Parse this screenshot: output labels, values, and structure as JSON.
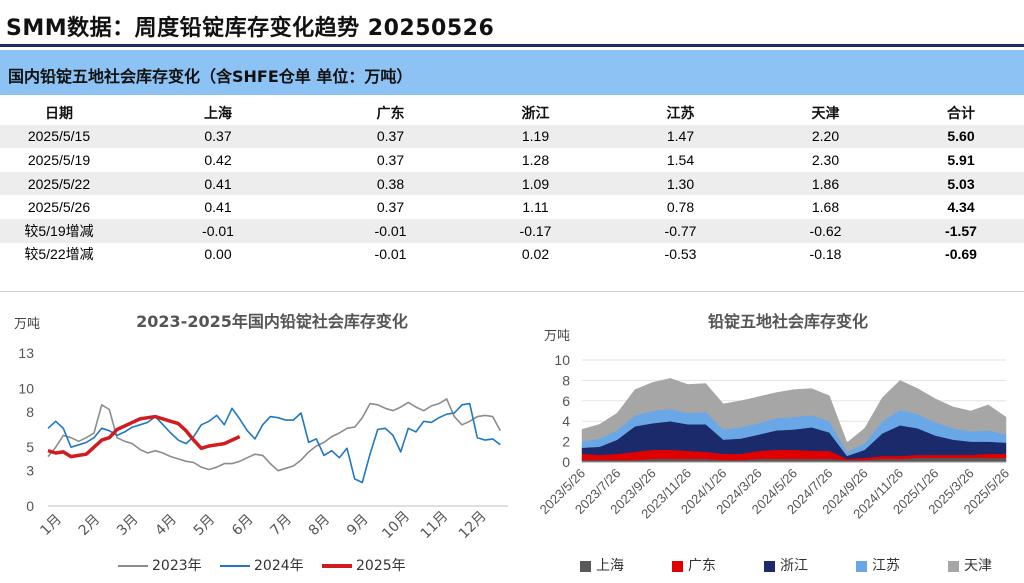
{
  "page_title": "SMM数据：周度铅锭库存变化趋势 20250526",
  "table": {
    "title": "国内铅锭五地社会库存变化（含SHFE仓单 单位：万吨）",
    "headers": [
      "日期",
      "上海",
      "广东",
      "浙江",
      "江苏",
      "天津",
      "合计"
    ],
    "rows": [
      [
        "2025/5/15",
        "0.37",
        "0.37",
        "1.19",
        "1.47",
        "2.20",
        "5.60"
      ],
      [
        "2025/5/19",
        "0.42",
        "0.37",
        "1.28",
        "1.54",
        "2.30",
        "5.91"
      ],
      [
        "2025/5/22",
        "0.41",
        "0.38",
        "1.09",
        "1.30",
        "1.86",
        "5.03"
      ],
      [
        "2025/5/26",
        "0.41",
        "0.37",
        "1.11",
        "0.78",
        "1.68",
        "4.34"
      ],
      [
        "较5/19增减",
        "-0.01",
        "-0.01",
        "-0.17",
        "-0.77",
        "-0.62",
        "-1.57"
      ],
      [
        "较5/22增减",
        "0.00",
        "-0.01",
        "0.02",
        "-0.53",
        "-0.18",
        "-0.69"
      ]
    ]
  },
  "chart_data": [
    {
      "type": "line",
      "title": "2023-2025年国内铅锭社会库存变化",
      "ylabel": "万吨",
      "ylim": [
        0,
        13
      ],
      "yticks": [
        0,
        3,
        5,
        8,
        10,
        13
      ],
      "categories": [
        "1月",
        "2月",
        "3月",
        "4月",
        "5月",
        "6月",
        "7月",
        "8月",
        "9月",
        "10月",
        "11月",
        "12月"
      ],
      "x_unit": "month (1.0 = start of Jan)",
      "series": [
        {
          "name": "2023年",
          "color": "#8c8c8c",
          "x": [
            1.0,
            1.2,
            1.4,
            1.6,
            1.8,
            2.0,
            2.2,
            2.4,
            2.6,
            2.8,
            3.0,
            3.2,
            3.4,
            3.6,
            3.8,
            4.0,
            4.2,
            4.4,
            4.6,
            4.8,
            5.0,
            5.2,
            5.4,
            5.6,
            5.8,
            6.0,
            6.2,
            6.4,
            6.6,
            6.8,
            7.0,
            7.2,
            7.4,
            7.6,
            7.8,
            8.0,
            8.2,
            8.4,
            8.6,
            8.8,
            9.0,
            9.2,
            9.4,
            9.6,
            9.8,
            10.0,
            10.2,
            10.4,
            10.6,
            10.8,
            11.0,
            11.2,
            11.4,
            11.6,
            11.8,
            12.0,
            12.2,
            12.4,
            12.6,
            12.8
          ],
          "values": [
            4.2,
            5.0,
            6.0,
            5.8,
            5.5,
            5.8,
            6.2,
            8.6,
            8.2,
            5.8,
            5.5,
            5.3,
            4.8,
            4.5,
            4.7,
            4.5,
            4.2,
            4.0,
            3.8,
            3.7,
            3.3,
            3.1,
            3.3,
            3.6,
            3.6,
            3.8,
            4.1,
            4.4,
            4.3,
            3.6,
            3.0,
            3.2,
            3.4,
            3.9,
            4.6,
            5.1,
            5.4,
            5.9,
            6.2,
            6.6,
            6.7,
            7.5,
            8.7,
            8.6,
            8.3,
            8.1,
            8.4,
            8.8,
            8.4,
            8.1,
            8.5,
            8.7,
            9.1,
            7.6,
            6.9,
            7.2,
            7.6,
            7.7,
            7.6,
            6.4
          ]
        },
        {
          "name": "2024年",
          "color": "#1f78c1",
          "x": [
            1.0,
            1.2,
            1.4,
            1.6,
            1.8,
            2.0,
            2.2,
            2.4,
            2.6,
            2.8,
            3.0,
            3.2,
            3.4,
            3.6,
            3.8,
            4.0,
            4.2,
            4.4,
            4.6,
            4.8,
            5.0,
            5.2,
            5.4,
            5.6,
            5.8,
            6.0,
            6.2,
            6.4,
            6.6,
            6.8,
            7.0,
            7.2,
            7.4,
            7.6,
            7.8,
            8.0,
            8.2,
            8.4,
            8.6,
            8.8,
            9.0,
            9.2,
            9.4,
            9.6,
            9.8,
            10.0,
            10.2,
            10.4,
            10.6,
            10.8,
            11.0,
            11.2,
            11.4,
            11.6,
            11.8,
            12.0,
            12.2,
            12.4,
            12.6,
            12.8
          ],
          "values": [
            6.6,
            7.2,
            6.6,
            5.0,
            5.2,
            5.4,
            5.8,
            6.6,
            6.4,
            6.0,
            6.3,
            6.7,
            6.9,
            7.1,
            7.6,
            6.9,
            6.2,
            5.6,
            5.3,
            5.9,
            6.9,
            7.2,
            7.7,
            6.9,
            8.3,
            7.4,
            6.4,
            5.7,
            6.9,
            7.6,
            7.5,
            7.3,
            7.3,
            7.9,
            5.4,
            5.7,
            4.3,
            4.7,
            4.1,
            4.9,
            2.3,
            2.0,
            4.4,
            6.5,
            6.6,
            6.0,
            4.6,
            6.6,
            6.3,
            7.2,
            7.1,
            7.5,
            7.8,
            7.9,
            8.6,
            8.7,
            5.8,
            5.6,
            5.7,
            5.2
          ]
        },
        {
          "name": "2025年",
          "color": "#d01c1f",
          "x": [
            1.0,
            1.2,
            1.4,
            1.6,
            1.8,
            2.0,
            2.2,
            2.4,
            2.6,
            2.8,
            3.0,
            3.2,
            3.4,
            3.6,
            3.8,
            4.0,
            4.2,
            4.4,
            4.6,
            4.8,
            5.0,
            5.2,
            5.4,
            5.6,
            5.8,
            6.0
          ],
          "values": [
            4.7,
            4.5,
            4.6,
            4.2,
            4.3,
            4.4,
            5.0,
            5.6,
            5.8,
            6.5,
            6.8,
            7.1,
            7.4,
            7.5,
            7.6,
            7.4,
            7.2,
            7.0,
            6.4,
            5.6,
            4.9,
            5.1,
            5.2,
            5.3,
            5.6,
            5.9
          ]
        }
      ],
      "legend_position": "bottom",
      "grid": false
    },
    {
      "type": "area",
      "stacked": true,
      "title": "铅锭五地社会库存变化",
      "ylabel": "万吨",
      "ylim": [
        0,
        10
      ],
      "yticks": [
        0,
        2,
        4,
        6,
        8,
        10
      ],
      "x_tick_labels": [
        "2023/5/26",
        "2023/7/26",
        "2023/9/26",
        "2023/11/26",
        "2024/1/26",
        "2024/3/26",
        "2024/5/26",
        "2024/7/26",
        "2024/9/26",
        "2024/11/26",
        "2025/1/26",
        "2025/3/26",
        "2025/5/26"
      ],
      "x_unit": "months since 2023/5/26",
      "x": [
        0,
        1,
        2,
        3,
        4,
        5,
        6,
        7,
        8,
        9,
        10,
        11,
        12,
        13,
        14,
        15,
        16,
        17,
        18,
        19,
        20,
        21,
        22,
        23,
        24
      ],
      "series": [
        {
          "name": "上海",
          "color": "#595959",
          "values": [
            0.2,
            0.2,
            0.2,
            0.2,
            0.3,
            0.3,
            0.3,
            0.3,
            0.2,
            0.2,
            0.3,
            0.3,
            0.3,
            0.3,
            0.3,
            0.2,
            0.2,
            0.3,
            0.3,
            0.4,
            0.4,
            0.4,
            0.4,
            0.4,
            0.4
          ]
        },
        {
          "name": "广东",
          "color": "#e00000",
          "values": [
            0.6,
            0.5,
            0.6,
            0.8,
            0.9,
            0.9,
            0.8,
            0.7,
            0.6,
            0.6,
            0.8,
            0.9,
            0.9,
            0.8,
            0.8,
            0.1,
            0.2,
            0.3,
            0.3,
            0.3,
            0.3,
            0.3,
            0.3,
            0.4,
            0.4
          ]
        },
        {
          "name": "浙江",
          "color": "#1b2a6b",
          "values": [
            0.6,
            0.8,
            1.4,
            2.5,
            2.6,
            2.8,
            2.6,
            2.7,
            1.4,
            1.5,
            1.6,
            1.9,
            2.0,
            2.3,
            1.8,
            0.3,
            0.8,
            2.2,
            3.0,
            2.6,
            1.9,
            1.5,
            1.3,
            1.2,
            1.1
          ]
        },
        {
          "name": "江苏",
          "color": "#69a7e6",
          "values": [
            0.6,
            0.8,
            0.9,
            1.1,
            1.2,
            1.2,
            1.1,
            1.2,
            1.0,
            1.1,
            1.1,
            1.2,
            1.2,
            1.2,
            1.1,
            0.4,
            0.6,
            1.2,
            1.5,
            1.4,
            1.3,
            1.1,
            1.0,
            1.1,
            0.8
          ]
        },
        {
          "name": "天津",
          "color": "#a6a6a6",
          "values": [
            1.2,
            1.4,
            1.7,
            2.5,
            2.8,
            3.0,
            2.8,
            2.8,
            2.5,
            2.6,
            2.6,
            2.5,
            2.7,
            2.6,
            2.5,
            0.9,
            1.5,
            2.3,
            2.9,
            2.5,
            2.3,
            2.1,
            2.0,
            2.5,
            1.7
          ]
        }
      ],
      "legend_position": "bottom",
      "grid": true
    }
  ]
}
